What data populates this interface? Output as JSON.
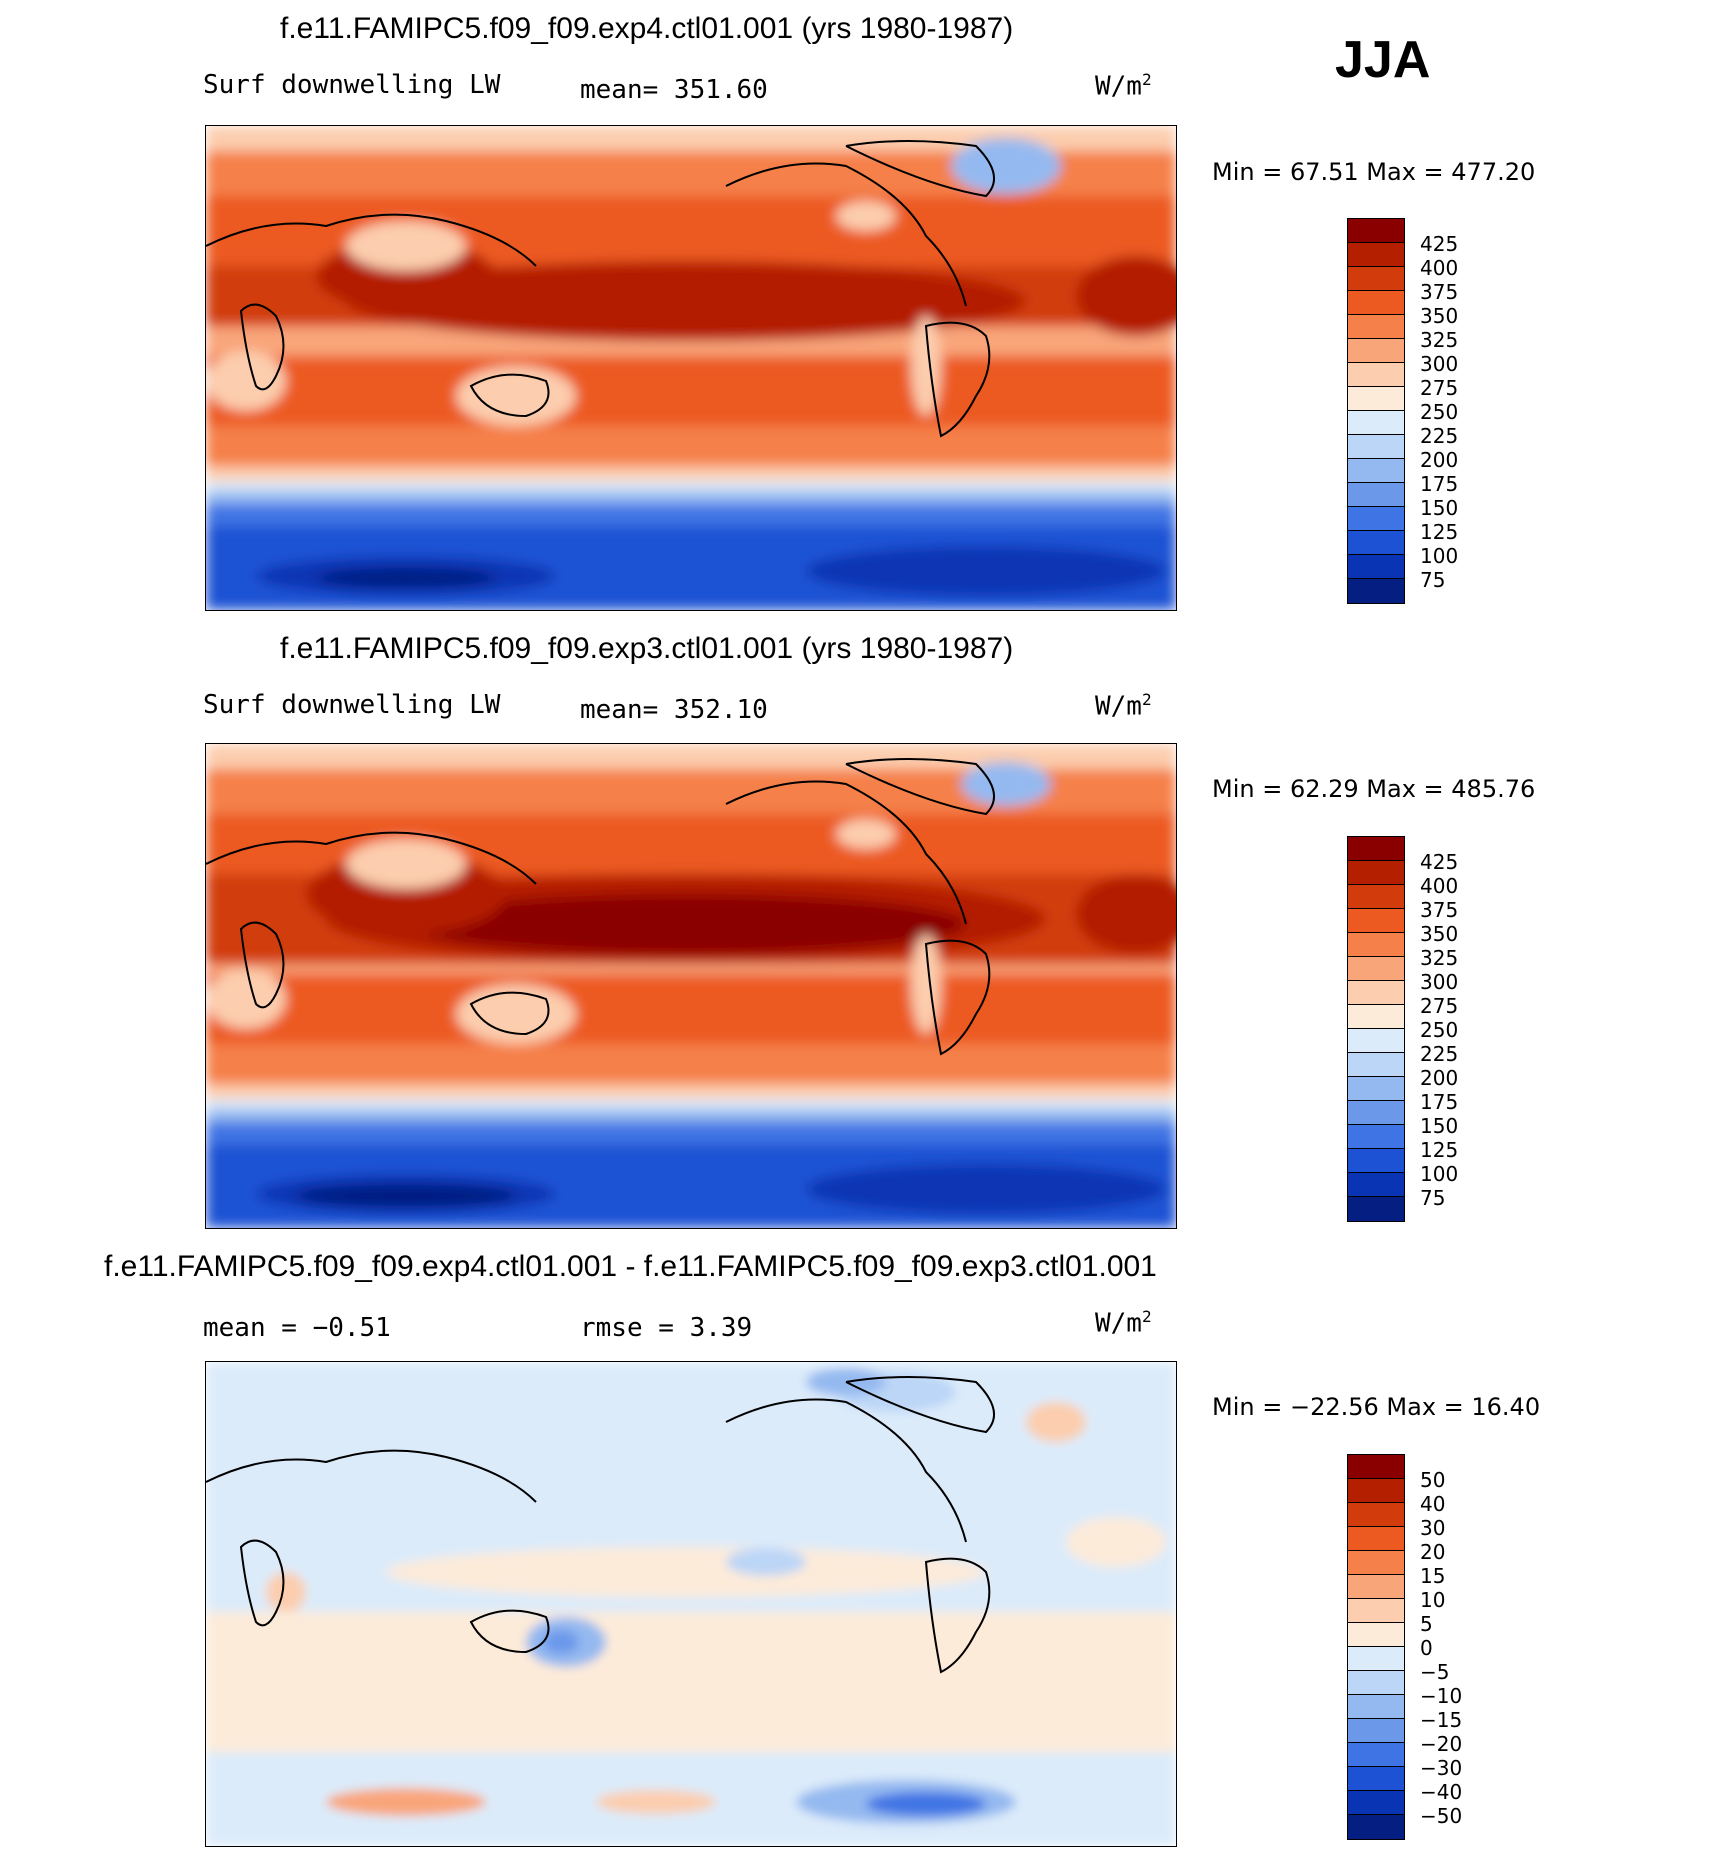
{
  "season": "JJA",
  "panels": [
    {
      "title": "f.e11.FAMIPC5.f09_f09.exp4.ctl01.001 (yrs 1980-1987)",
      "left_label": "Surf downwelling LW",
      "center_label": "mean= 351.60",
      "units_base": "W/m",
      "units_exp": "2",
      "stats": "Min =   67.51  Max =  477.20",
      "colorbar": {
        "labels": [
          "425",
          "400",
          "375",
          "350",
          "325",
          "300",
          "275",
          "250",
          "225",
          "200",
          "175",
          "150",
          "125",
          "100",
          "75"
        ],
        "colors": [
          "#8a0000",
          "#b41f00",
          "#d23c0c",
          "#ec5a22",
          "#f5804a",
          "#f9a57a",
          "#fccdae",
          "#fdebd9",
          "#dcebfa",
          "#bcd6f7",
          "#94b9f0",
          "#6c98ea",
          "#3f74e4",
          "#1d52d4",
          "#0935b4",
          "#041e82"
        ]
      }
    },
    {
      "title": "f.e11.FAMIPC5.f09_f09.exp3.ctl01.001 (yrs 1980-1987)",
      "left_label": "Surf downwelling LW",
      "center_label": "mean= 352.10",
      "units_base": "W/m",
      "units_exp": "2",
      "stats": "Min =   62.29  Max =  485.76",
      "colorbar": {
        "labels": [
          "425",
          "400",
          "375",
          "350",
          "325",
          "300",
          "275",
          "250",
          "225",
          "200",
          "175",
          "150",
          "125",
          "100",
          "75"
        ],
        "colors": [
          "#8a0000",
          "#b41f00",
          "#d23c0c",
          "#ec5a22",
          "#f5804a",
          "#f9a57a",
          "#fccdae",
          "#fdebd9",
          "#dcebfa",
          "#bcd6f7",
          "#94b9f0",
          "#6c98ea",
          "#3f74e4",
          "#1d52d4",
          "#0935b4",
          "#041e82"
        ]
      }
    },
    {
      "title": "f.e11.FAMIPC5.f09_f09.exp4.ctl01.001 - f.e11.FAMIPC5.f09_f09.exp3.ctl01.001",
      "left_label": "mean =   −0.51",
      "center_label": "rmse =    3.39",
      "units_base": "W/m",
      "units_exp": "2",
      "stats": "Min = −22.56  Max =   16.40",
      "colorbar": {
        "labels": [
          "50",
          "40",
          "30",
          "20",
          "15",
          "10",
          "5",
          "0",
          "−5",
          "−10",
          "−15",
          "−20",
          "−30",
          "−40",
          "−50"
        ],
        "colors": [
          "#8a0000",
          "#b41f00",
          "#d23c0c",
          "#ec5a22",
          "#f5804a",
          "#f9a57a",
          "#fccdae",
          "#fdebd9",
          "#dcebfa",
          "#bcd6f7",
          "#94b9f0",
          "#6c98ea",
          "#3f74e4",
          "#1d52d4",
          "#0935b4",
          "#041e82"
        ]
      }
    }
  ]
}
